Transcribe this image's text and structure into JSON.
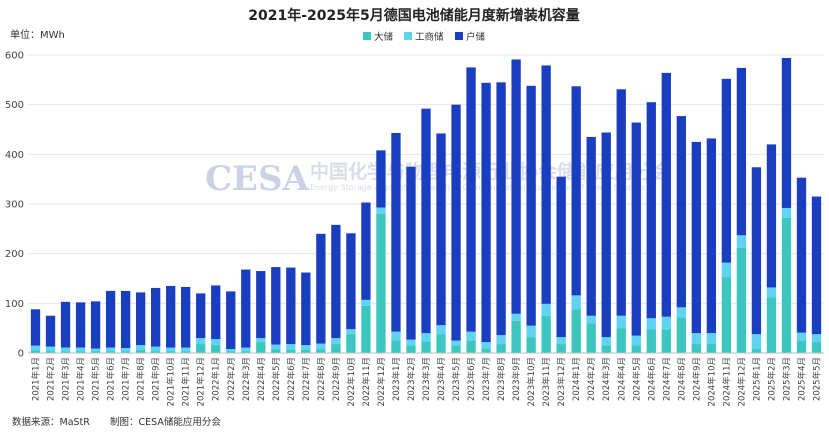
{
  "chart_data": {
    "type": "bar",
    "stacked": true,
    "title": "2021年-2025年5月德国电池储能月度新增装机容量",
    "unit_label": "单位：MWh",
    "ylim": [
      0,
      600
    ],
    "yticks": [
      0,
      100,
      200,
      300,
      400,
      500,
      600
    ],
    "legend_position": "top-right",
    "categories": [
      "2021年1月",
      "2021年2月",
      "2021年3月",
      "2021年4月",
      "2021年5月",
      "2021年6月",
      "2021年7月",
      "2021年8月",
      "2021年9月",
      "2021年10月",
      "2021年11月",
      "2021年12月",
      "2022年1月",
      "2022年2月",
      "2022年3月",
      "2022年4月",
      "2022年5月",
      "2022年6月",
      "2022年7月",
      "2022年8月",
      "2022年9月",
      "2022年10月",
      "2022年11月",
      "2022年12月",
      "2023年1月",
      "2023年2月",
      "2023年3月",
      "2023年4月",
      "2023年5月",
      "2023年6月",
      "2023年7月",
      "2023年8月",
      "2023年9月",
      "2023年10月",
      "2023年11月",
      "2023年12月",
      "2024年1月",
      "2024年2月",
      "2024年3月",
      "2024年4月",
      "2024年5月",
      "2024年6月",
      "2024年7月",
      "2024年8月",
      "2024年9月",
      "2024年10月",
      "2024年11月",
      "2024年12月",
      "2025年1月",
      "2025年2月",
      "2025年3月",
      "2025年4月",
      "2025年5月"
    ],
    "series": [
      {
        "name": "大储",
        "color": "#3cc6bf",
        "values": [
          5,
          3,
          3,
          3,
          3,
          3,
          3,
          6,
          3,
          3,
          3,
          18,
          16,
          3,
          3,
          22,
          7,
          6,
          6,
          7,
          18,
          38,
          95,
          280,
          25,
          15,
          23,
          38,
          15,
          25,
          8,
          18,
          65,
          32,
          75,
          18,
          88,
          60,
          15,
          50,
          15,
          48,
          48,
          72,
          18,
          18,
          152,
          212,
          8,
          112,
          272,
          25,
          22
        ]
      },
      {
        "name": "工商储",
        "color": "#5fd3f1",
        "values": [
          10,
          10,
          8,
          8,
          6,
          8,
          7,
          10,
          10,
          8,
          8,
          12,
          12,
          5,
          8,
          8,
          10,
          12,
          10,
          12,
          12,
          10,
          12,
          13,
          18,
          12,
          17,
          18,
          10,
          18,
          14,
          18,
          14,
          23,
          24,
          14,
          28,
          15,
          17,
          25,
          20,
          22,
          25,
          20,
          22,
          22,
          30,
          25,
          30,
          20,
          20,
          16,
          16
        ]
      },
      {
        "name": "户储",
        "color": "#1a3ec0",
        "values": [
          73,
          62,
          92,
          91,
          95,
          114,
          115,
          106,
          118,
          124,
          122,
          90,
          108,
          116,
          157,
          135,
          156,
          154,
          146,
          221,
          228,
          193,
          196,
          115,
          400,
          348,
          452,
          386,
          475,
          532,
          522,
          509,
          512,
          483,
          480,
          323,
          421,
          360,
          412,
          456,
          429,
          435,
          491,
          385,
          385,
          392,
          370,
          337,
          336,
          288,
          302,
          312,
          277
        ]
      }
    ]
  },
  "footer": {
    "source": "数据来源：MaStR",
    "maker": "制图：CESA储能应用分会"
  },
  "watermark": {
    "logo": "CESA",
    "cn": "中国化学与物理电源行业协会储能应用分会",
    "en": "Energy Storage Application Branch of China Industrial Association of Power Sources"
  }
}
